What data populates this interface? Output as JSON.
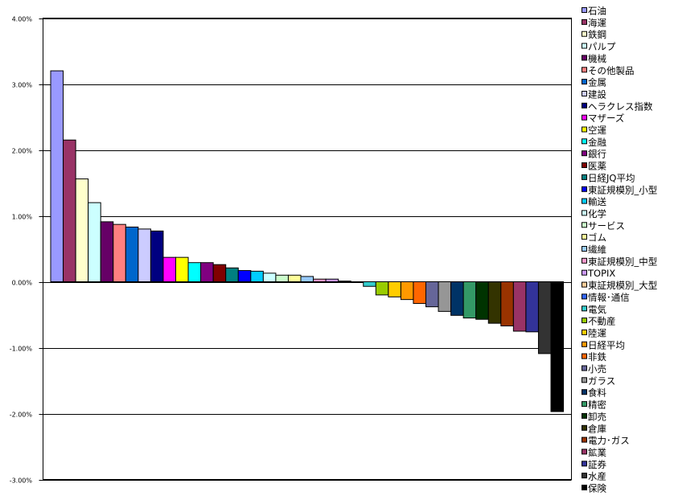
{
  "chart_data": {
    "type": "bar",
    "title": "",
    "xlabel": "",
    "ylabel": "",
    "ylim": [
      -3.0,
      4.0
    ],
    "y_ticks": [
      "4.00%",
      "3.00%",
      "2.00%",
      "1.00%",
      "0.00%",
      "-1.00%",
      "-2.00%",
      "-3.00%"
    ],
    "y_tick_values": [
      4,
      3,
      2,
      1,
      0,
      -1,
      -2,
      -3
    ],
    "grid": true,
    "legend_position": "right",
    "categories": [
      "石油",
      "海運",
      "鉄鋼",
      "パルプ",
      "機械",
      "その他製品",
      "金属",
      "建設",
      "ヘラクレス指数",
      "マザーズ",
      "空運",
      "金融",
      "銀行",
      "医薬",
      "日経JQ平均",
      "東証規模別_小型",
      "輸送",
      "化学",
      "サービス",
      "ゴム",
      "繊維",
      "東証規模別_中型",
      "TOPIX",
      "東証規模別_大型",
      "情報･通信",
      "電気",
      "不動産",
      "陸運",
      "日経平均",
      "非鉄",
      "小売",
      "ガラス",
      "食料",
      "精密",
      "卸売",
      "倉庫",
      "電力･ガス",
      "鉱業",
      "証券",
      "水産",
      "保険"
    ],
    "values": [
      3.2,
      2.15,
      1.56,
      1.2,
      0.91,
      0.87,
      0.83,
      0.8,
      0.77,
      0.37,
      0.37,
      0.29,
      0.29,
      0.26,
      0.21,
      0.17,
      0.16,
      0.13,
      0.1,
      0.1,
      0.08,
      0.04,
      0.04,
      0.01,
      -0.01,
      -0.07,
      -0.2,
      -0.23,
      -0.27,
      -0.33,
      -0.38,
      -0.45,
      -0.51,
      -0.55,
      -0.57,
      -0.63,
      -0.67,
      -0.75,
      -0.76,
      -1.09,
      -1.97
    ],
    "colors": [
      "#9999FF",
      "#993366",
      "#FFFFCC",
      "#CCFFFF",
      "#660066",
      "#FF8080",
      "#0066CC",
      "#CCCCFF",
      "#000080",
      "#FF00FF",
      "#FFFF00",
      "#00FFFF",
      "#800080",
      "#800000",
      "#008080",
      "#0000FF",
      "#00CCFF",
      "#CCFFFF",
      "#CCFFCC",
      "#FFFF99",
      "#99CCFF",
      "#FF99CC",
      "#CC99FF",
      "#FFCC99",
      "#3366FF",
      "#33CCCC",
      "#99CC00",
      "#FFCC00",
      "#FF9900",
      "#FF6600",
      "#666699",
      "#969696",
      "#003366",
      "#339966",
      "#003300",
      "#333300",
      "#993300",
      "#993366",
      "#333399",
      "#333333",
      "#000000"
    ]
  }
}
